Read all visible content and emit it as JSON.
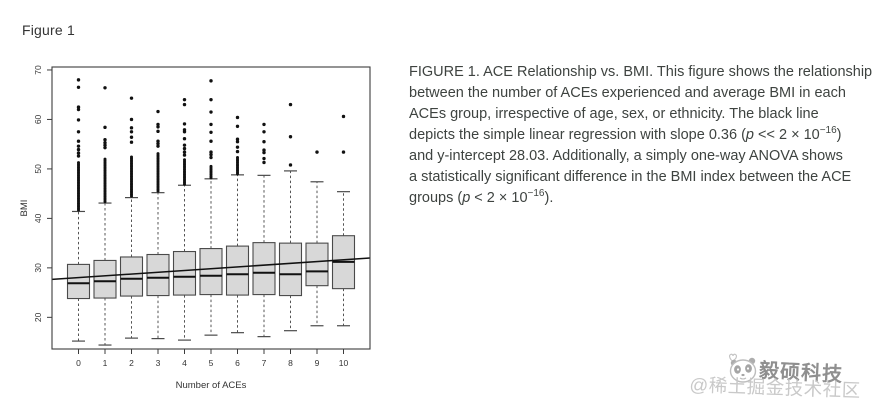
{
  "figure_label": "Figure 1",
  "caption": {
    "lines": [
      [
        {
          "s": "n",
          "t": "FIGURE 1. ACE Relationship vs. BMI. This figure shows the relationship"
        }
      ],
      [
        {
          "s": "n",
          "t": "between the number of ACEs experienced and average BMI in each"
        }
      ],
      [
        {
          "s": "n",
          "t": "ACEs group, irrespective of age, sex, or ethnicity. The black line"
        }
      ],
      [
        {
          "s": "n",
          "t": "depicts the simple linear regression with slope 0.36 ("
        },
        {
          "s": "i",
          "t": "p"
        },
        {
          "s": "n",
          "t": " << 2 × 10"
        },
        {
          "s": "sup",
          "t": "−16"
        },
        {
          "s": "n",
          "t": ")"
        }
      ],
      [
        {
          "s": "n",
          "t": "and y-intercept 28.03. Additionally, a simply one-way ANOVA shows"
        }
      ],
      [
        {
          "s": "n",
          "t": "a statistically significant difference in the BMI index between the ACE"
        }
      ],
      [
        {
          "s": "n",
          "t": "groups ("
        },
        {
          "s": "i",
          "t": "p"
        },
        {
          "s": "n",
          "t": " < 2 × 10"
        },
        {
          "s": "sup",
          "t": "−16"
        },
        {
          "s": "n",
          "t": ")."
        }
      ]
    ]
  },
  "chart_data": {
    "type": "boxplot",
    "title": "",
    "xlabel": "Number of ACEs",
    "ylabel": "BMI",
    "x_ticks": [
      0,
      1,
      2,
      3,
      4,
      5,
      6,
      7,
      8,
      9,
      10
    ],
    "y_ticks": [
      20,
      30,
      40,
      50,
      60,
      70
    ],
    "xlim": [
      -1.0,
      11.0
    ],
    "ylim": [
      13.6,
      70.6
    ],
    "grid": false,
    "box_fill": "#d8d8d8",
    "box_stroke": "#4a4a4a",
    "median_color": "#111111",
    "whisker_color": "#555555",
    "outlier_color": "#111111",
    "regression": {
      "slope": 0.36,
      "intercept": 28.03,
      "color": "#111111"
    },
    "groups": [
      {
        "x": 0,
        "q1": 23.8,
        "median": 26.9,
        "q3": 30.7,
        "whisker_low": 15.2,
        "whisker_high": 41.4,
        "outliers_dense": [
          41.7,
          51.5
        ],
        "outliers": [
          52.6,
          53.2,
          53.9,
          54.6,
          55.6,
          57.5,
          59.9,
          62.0,
          62.5,
          66.5,
          68.0
        ]
      },
      {
        "x": 1,
        "q1": 23.9,
        "median": 27.3,
        "q3": 31.5,
        "whisker_low": 14.4,
        "whisker_high": 43.1,
        "outliers_dense": [
          43.4,
          52.2
        ],
        "outliers": [
          54.3,
          54.8,
          55.3,
          55.9,
          58.4,
          66.4
        ]
      },
      {
        "x": 2,
        "q1": 24.3,
        "median": 27.8,
        "q3": 32.2,
        "whisker_low": 15.8,
        "whisker_high": 44.2,
        "outliers_dense": [
          44.5,
          52.6
        ],
        "outliers": [
          55.4,
          56.4,
          57.5,
          58.3,
          60.0,
          64.3
        ]
      },
      {
        "x": 3,
        "q1": 24.4,
        "median": 28.0,
        "q3": 32.7,
        "whisker_low": 15.7,
        "whisker_high": 45.2,
        "outliers_dense": [
          45.5,
          53.1
        ],
        "outliers": [
          54.6,
          55.1,
          55.6,
          57.6,
          58.5,
          59.0,
          61.6
        ]
      },
      {
        "x": 4,
        "q1": 24.5,
        "median": 28.2,
        "q3": 33.3,
        "whisker_low": 15.4,
        "whisker_high": 46.7,
        "outliers_dense": [
          46.9,
          52.0
        ],
        "outliers": [
          52.8,
          53.4,
          54.1,
          54.8,
          56.1,
          57.5,
          57.9,
          59.1,
          63.0,
          64.0
        ]
      },
      {
        "x": 5,
        "q1": 24.6,
        "median": 28.4,
        "q3": 33.9,
        "whisker_low": 16.4,
        "whisker_high": 48.0,
        "outliers_dense": [
          48.2,
          50.8
        ],
        "outliers": [
          52.3,
          52.9,
          53.4,
          55.6,
          57.4,
          59.0,
          61.5,
          64.0,
          67.8
        ]
      },
      {
        "x": 6,
        "q1": 24.5,
        "median": 28.7,
        "q3": 34.4,
        "whisker_low": 16.9,
        "whisker_high": 48.8,
        "outliers_dense": [
          49.0,
          52.3
        ],
        "outliers": [
          53.5,
          54.4,
          55.5,
          56.0,
          58.6,
          60.4
        ]
      },
      {
        "x": 7,
        "q1": 24.6,
        "median": 29.0,
        "q3": 35.1,
        "whisker_low": 16.1,
        "whisker_high": 48.7,
        "outliers_dense": null,
        "outliers": [
          51.3,
          52.1,
          53.3,
          53.8,
          55.5,
          57.5,
          59.0
        ]
      },
      {
        "x": 8,
        "q1": 24.4,
        "median": 28.7,
        "q3": 35.0,
        "whisker_low": 17.3,
        "whisker_high": 49.6,
        "outliers_dense": null,
        "outliers": [
          50.8,
          56.5,
          63.0
        ]
      },
      {
        "x": 9,
        "q1": 26.4,
        "median": 29.3,
        "q3": 35.0,
        "whisker_low": 18.3,
        "whisker_high": 47.4,
        "outliers_dense": null,
        "outliers": [
          53.4
        ]
      },
      {
        "x": 10,
        "q1": 25.8,
        "median": 31.2,
        "q3": 36.5,
        "whisker_low": 18.3,
        "whisker_high": 45.4,
        "outliers_dense": null,
        "outliers": [
          53.4,
          60.6
        ]
      }
    ]
  },
  "watermark": {
    "brand": "毅硕科技",
    "community": "@稀土掘金技术社区",
    "brand_color": "#8f8f8f",
    "community_color": "#c9c9c9"
  }
}
